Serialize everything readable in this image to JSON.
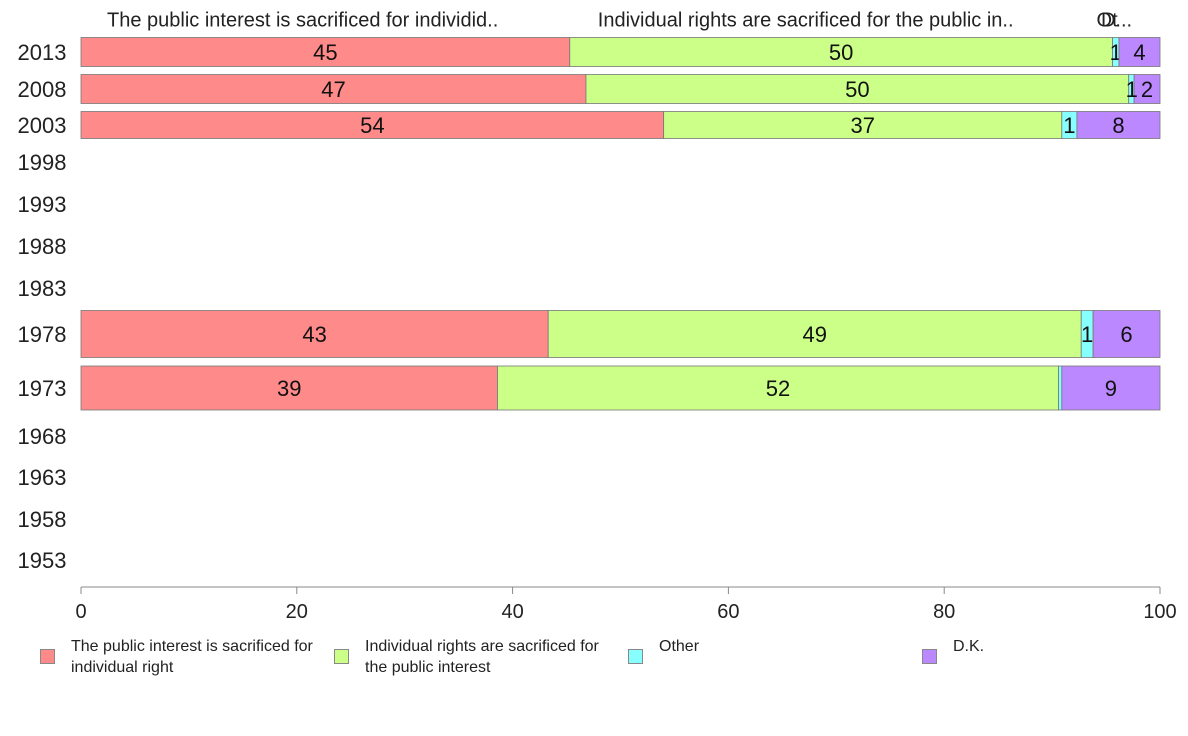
{
  "chart_data": {
    "type": "bar",
    "orientation": "horizontal",
    "stacked": true,
    "categories": [
      "2013",
      "2008",
      "2003",
      "1998",
      "1993",
      "1988",
      "1983",
      "1978",
      "1973",
      "1968",
      "1963",
      "1958",
      "1953"
    ],
    "series": [
      {
        "name": "The public interest is sacrificed for individual right",
        "header": "The public interest is sacrificed for individid..",
        "color": "#ff8a8a",
        "values": [
          45.3,
          46.8,
          54.0,
          null,
          null,
          null,
          null,
          43.3,
          38.6,
          null,
          null,
          null,
          null
        ],
        "labels": [
          "45",
          "47",
          "54",
          "",
          "",
          "",
          "",
          "43",
          "39",
          "",
          "",
          "",
          ""
        ]
      },
      {
        "name": "Individual rights are sacrificed for the public interest",
        "header": "Individual rights are sacrificed for the public in..",
        "color": "#ccff88",
        "values": [
          50.3,
          50.3,
          36.9,
          null,
          null,
          null,
          null,
          49.4,
          52.0,
          null,
          null,
          null,
          null
        ],
        "labels": [
          "50",
          "50",
          "37",
          "",
          "",
          "",
          "",
          "49",
          "52",
          "",
          "",
          "",
          ""
        ]
      },
      {
        "name": "Other",
        "header": "Ot",
        "color": "#88ffff",
        "values": [
          0.6,
          0.5,
          1.4,
          null,
          null,
          null,
          null,
          1.1,
          0.3,
          null,
          null,
          null,
          null
        ],
        "labels": [
          "1",
          "",
          "1",
          "",
          "",
          "",
          "",
          "1",
          "",
          "",
          "",
          "",
          ""
        ]
      },
      {
        "name": "D.K.",
        "header": "D...",
        "color": "#bb88ff",
        "values": [
          3.8,
          2.4,
          7.7,
          null,
          null,
          null,
          null,
          6.2,
          9.1,
          null,
          null,
          null,
          null
        ],
        "labels": [
          "4",
          "2",
          "8",
          "",
          "",
          "",
          "",
          "6",
          "9",
          "",
          "",
          "",
          ""
        ]
      }
    ],
    "extra_labels": [
      {
        "category": "2008",
        "text": "1",
        "after_series": 1
      }
    ],
    "xlim": [
      0,
      100
    ],
    "xticks": [
      "0",
      "20",
      "40",
      "60",
      "80",
      "100"
    ],
    "legend_position": "bottom"
  }
}
